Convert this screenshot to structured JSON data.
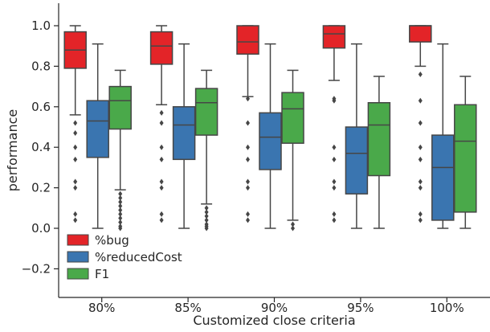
{
  "chart_data": {
    "type": "box",
    "xlabel": "Customized close criteria",
    "ylabel": "performance",
    "ylim": [
      -0.3,
      1.1
    ],
    "y_ticks": [
      -0.2,
      0.0,
      0.2,
      0.4,
      0.6,
      0.8,
      1.0
    ],
    "y_tick_labels": [
      "−0.2",
      "0.0",
      "0.2",
      "0.4",
      "0.6",
      "0.8",
      "1.0"
    ],
    "grid": false,
    "legend_position": "bottom-left",
    "categories": [
      "80%",
      "85%",
      "90%",
      "95%",
      "100%"
    ],
    "series": [
      {
        "name": "%bug",
        "color": "#e32428",
        "boxes": [
          {
            "whisker_low": 0.56,
            "q1": 0.79,
            "median": 0.88,
            "q3": 0.97,
            "whisker_high": 1.0,
            "outliers": [
              0.52,
              0.47,
              0.4,
              0.34,
              0.23,
              0.2,
              0.07,
              0.04
            ]
          },
          {
            "whisker_low": 0.61,
            "q1": 0.81,
            "median": 0.9,
            "q3": 0.97,
            "whisker_high": 1.0,
            "outliers": [
              0.57,
              0.52,
              0.4,
              0.34,
              0.23,
              0.2,
              0.07,
              0.04
            ]
          },
          {
            "whisker_low": 0.65,
            "q1": 0.86,
            "median": 0.92,
            "q3": 1.0,
            "whisker_high": 1.0,
            "outliers": [
              0.64,
              0.52,
              0.4,
              0.34,
              0.23,
              0.2,
              0.07,
              0.04
            ]
          },
          {
            "whisker_low": 0.73,
            "q1": 0.89,
            "median": 0.96,
            "q3": 1.0,
            "whisker_high": 1.0,
            "outliers": [
              0.64,
              0.63,
              0.4,
              0.34,
              0.23,
              0.2,
              0.07,
              0.04
            ]
          },
          {
            "whisker_low": 0.8,
            "q1": 0.92,
            "median": 1.0,
            "q3": 1.0,
            "whisker_high": 1.0,
            "outliers": [
              0.76,
              0.63,
              0.52,
              0.4,
              0.34,
              0.23,
              0.2,
              0.07,
              0.04
            ]
          }
        ]
      },
      {
        "name": "%reducedCost",
        "color": "#3a75b0",
        "boxes": [
          {
            "whisker_low": 0.0,
            "q1": 0.35,
            "median": 0.53,
            "q3": 0.63,
            "whisker_high": 0.91,
            "outliers": []
          },
          {
            "whisker_low": 0.0,
            "q1": 0.34,
            "median": 0.51,
            "q3": 0.6,
            "whisker_high": 0.91,
            "outliers": []
          },
          {
            "whisker_low": 0.0,
            "q1": 0.29,
            "median": 0.45,
            "q3": 0.57,
            "whisker_high": 0.91,
            "outliers": []
          },
          {
            "whisker_low": 0.0,
            "q1": 0.17,
            "median": 0.37,
            "q3": 0.5,
            "whisker_high": 0.91,
            "outliers": []
          },
          {
            "whisker_low": 0.0,
            "q1": 0.04,
            "median": 0.3,
            "q3": 0.46,
            "whisker_high": 0.91,
            "outliers": []
          }
        ]
      },
      {
        "name": "F1",
        "color": "#4aa94a",
        "boxes": [
          {
            "whisker_low": 0.19,
            "q1": 0.49,
            "median": 0.63,
            "q3": 0.7,
            "whisker_high": 0.78,
            "outliers": [
              0.17,
              0.15,
              0.13,
              0.11,
              0.09,
              0.07,
              0.05,
              0.03,
              0.01,
              0.0
            ]
          },
          {
            "whisker_low": 0.12,
            "q1": 0.46,
            "median": 0.62,
            "q3": 0.69,
            "whisker_high": 0.78,
            "outliers": [
              0.1,
              0.08,
              0.06,
              0.04,
              0.02,
              0.01,
              0.0
            ]
          },
          {
            "whisker_low": 0.04,
            "q1": 0.42,
            "median": 0.59,
            "q3": 0.67,
            "whisker_high": 0.78,
            "outliers": [
              0.02,
              0.0
            ]
          },
          {
            "whisker_low": 0.0,
            "q1": 0.26,
            "median": 0.51,
            "q3": 0.62,
            "whisker_high": 0.75,
            "outliers": []
          },
          {
            "whisker_low": 0.0,
            "q1": 0.08,
            "median": 0.43,
            "q3": 0.61,
            "whisker_high": 0.75,
            "outliers": []
          }
        ]
      }
    ]
  }
}
